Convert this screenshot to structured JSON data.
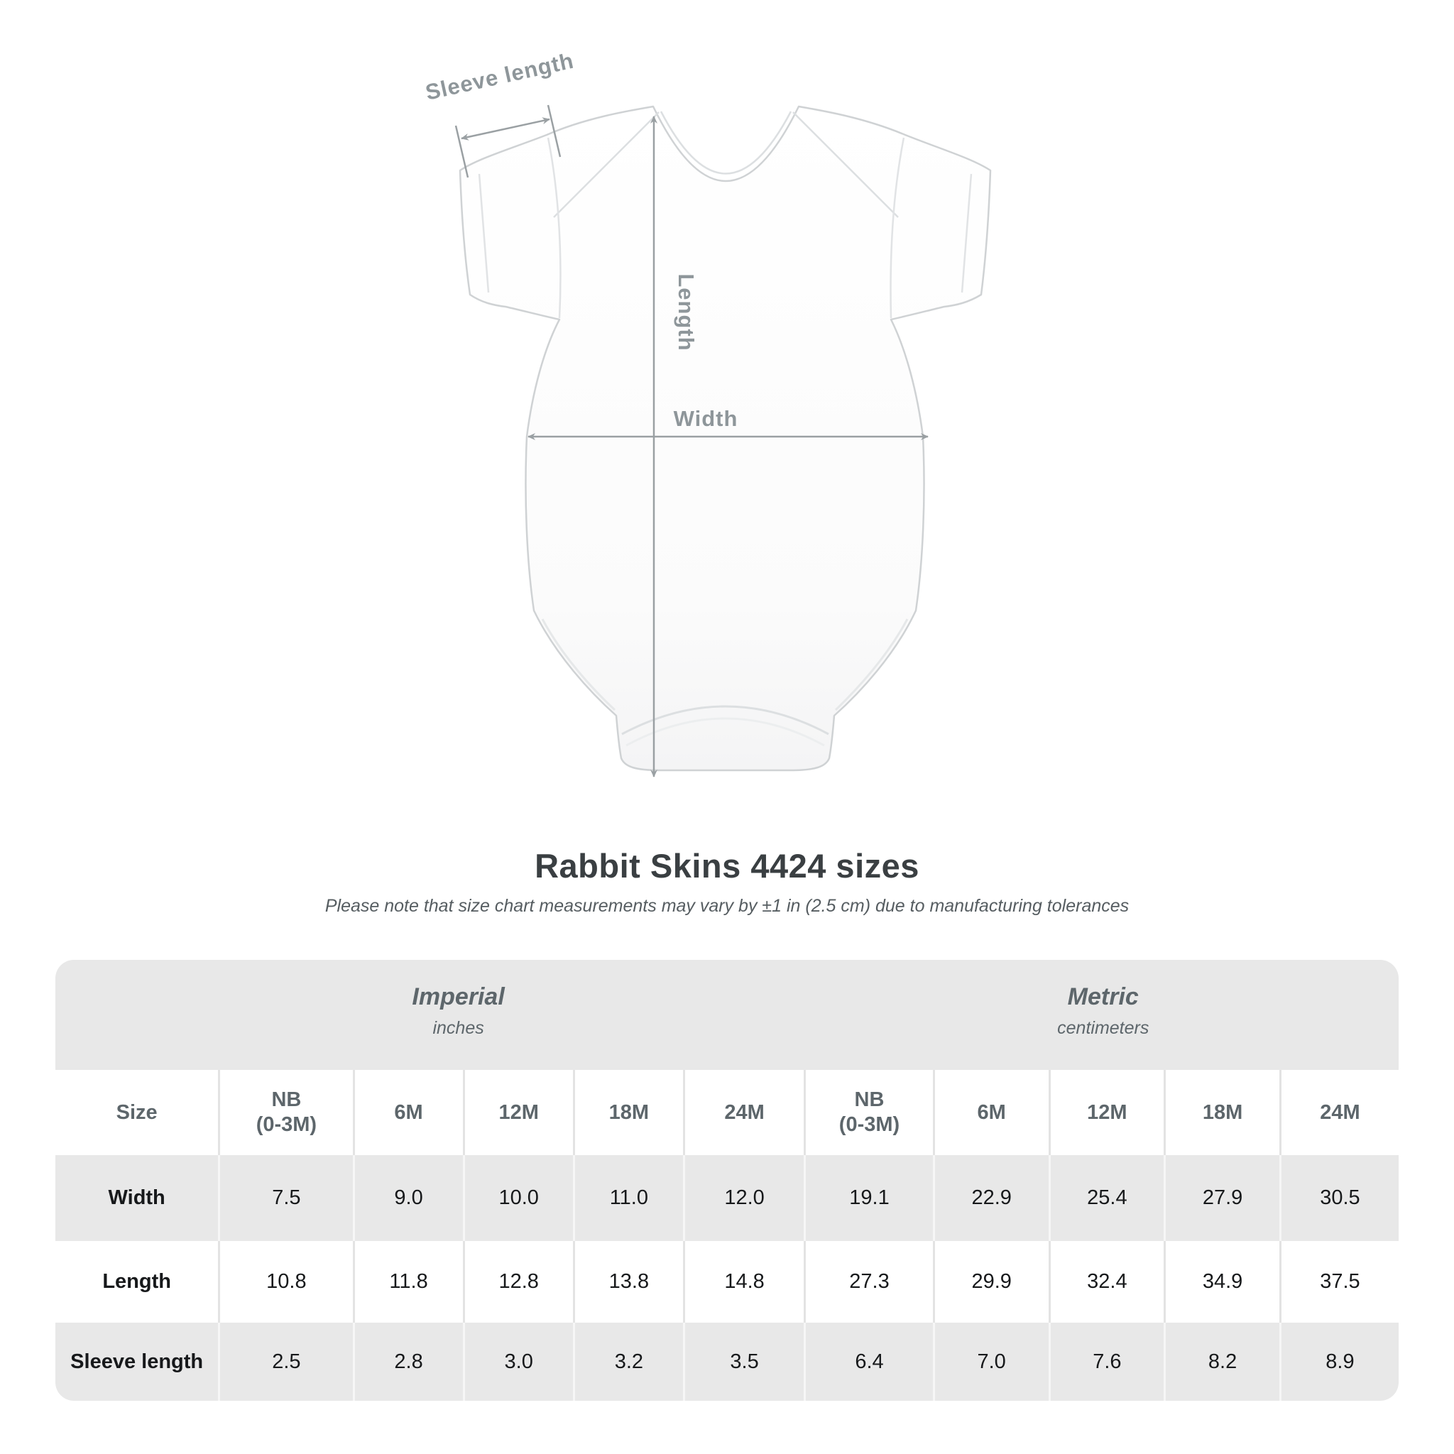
{
  "page": {
    "title": "Rabbit Skins 4424 sizes",
    "subtitle": "Please note that size chart measurements may vary by ±1 in (2.5 cm) due to manufacturing tolerances"
  },
  "diagram": {
    "garment": "infant-bodysuit-onesie",
    "labels": {
      "sleeve": "Sleeve length",
      "length": "Length",
      "width": "Width"
    },
    "line_color": "#9aa0a3",
    "label_color": "#8e969a"
  },
  "table": {
    "groups": [
      {
        "title": "Imperial",
        "unit": "inches"
      },
      {
        "title": "Metric",
        "unit": "centimeters"
      }
    ],
    "header_lines": [
      [
        "Size"
      ],
      [
        "NB",
        "(0-3M)"
      ],
      [
        "6M"
      ],
      [
        "12M"
      ],
      [
        "18M"
      ],
      [
        "24M"
      ],
      [
        "NB",
        "(0-3M)"
      ],
      [
        "6M"
      ],
      [
        "12M"
      ],
      [
        "18M"
      ],
      [
        "24M"
      ]
    ],
    "col_widths_pct": [
      12.2,
      10,
      8.2,
      8.2,
      8.2,
      9,
      9.6,
      8.6,
      8.6,
      8.6,
      8.8
    ],
    "card_background": "#e8e8e8",
    "label_color": "#5d666b",
    "value_color": "#17191b"
  },
  "chart_data": {
    "type": "table",
    "title": "Rabbit Skins 4424 sizes",
    "columns": [
      "Size",
      "NB (0-3M)",
      "6M",
      "12M",
      "18M",
      "24M",
      "NB (0-3M)",
      "6M",
      "12M",
      "18M",
      "24M"
    ],
    "units": {
      "imperial": "inches",
      "metric": "centimeters"
    },
    "rows": [
      {
        "label": "Width",
        "values": [
          "7.5",
          "9.0",
          "10.0",
          "11.0",
          "12.0",
          "19.1",
          "22.9",
          "25.4",
          "27.9",
          "30.5"
        ]
      },
      {
        "label": "Length",
        "values": [
          "10.8",
          "11.8",
          "12.8",
          "13.8",
          "14.8",
          "27.3",
          "29.9",
          "32.4",
          "34.9",
          "37.5"
        ]
      },
      {
        "label": "Sleeve length",
        "values": [
          "2.5",
          "2.8",
          "3.0",
          "3.2",
          "3.5",
          "6.4",
          "7.0",
          "7.6",
          "8.2",
          "8.9"
        ]
      }
    ]
  }
}
